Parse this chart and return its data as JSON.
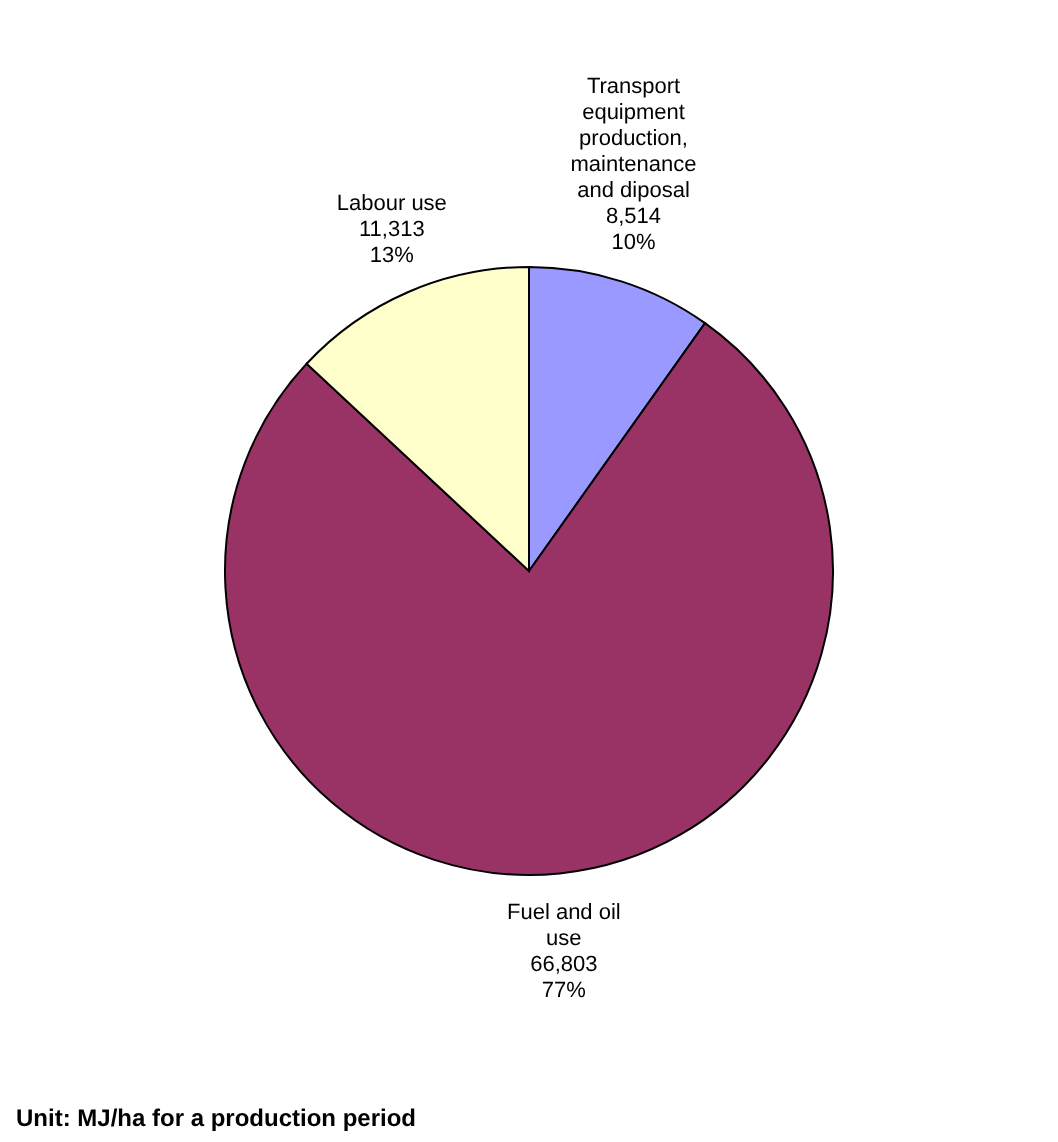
{
  "chart_data": {
    "type": "pie",
    "categories": [
      "Transport equipment production, maintenance and diposal",
      "Fuel and oil use",
      "Labour use"
    ],
    "values": [
      8514,
      66803,
      11313
    ],
    "colors": [
      "#9999ff",
      "#993366",
      "#ffffcc"
    ],
    "value_labels": [
      "8,514\n10%",
      "66,803\n77%",
      "11,313\n13%"
    ],
    "annotations": [
      "Unit: MJ/ha for a production period"
    ]
  }
}
